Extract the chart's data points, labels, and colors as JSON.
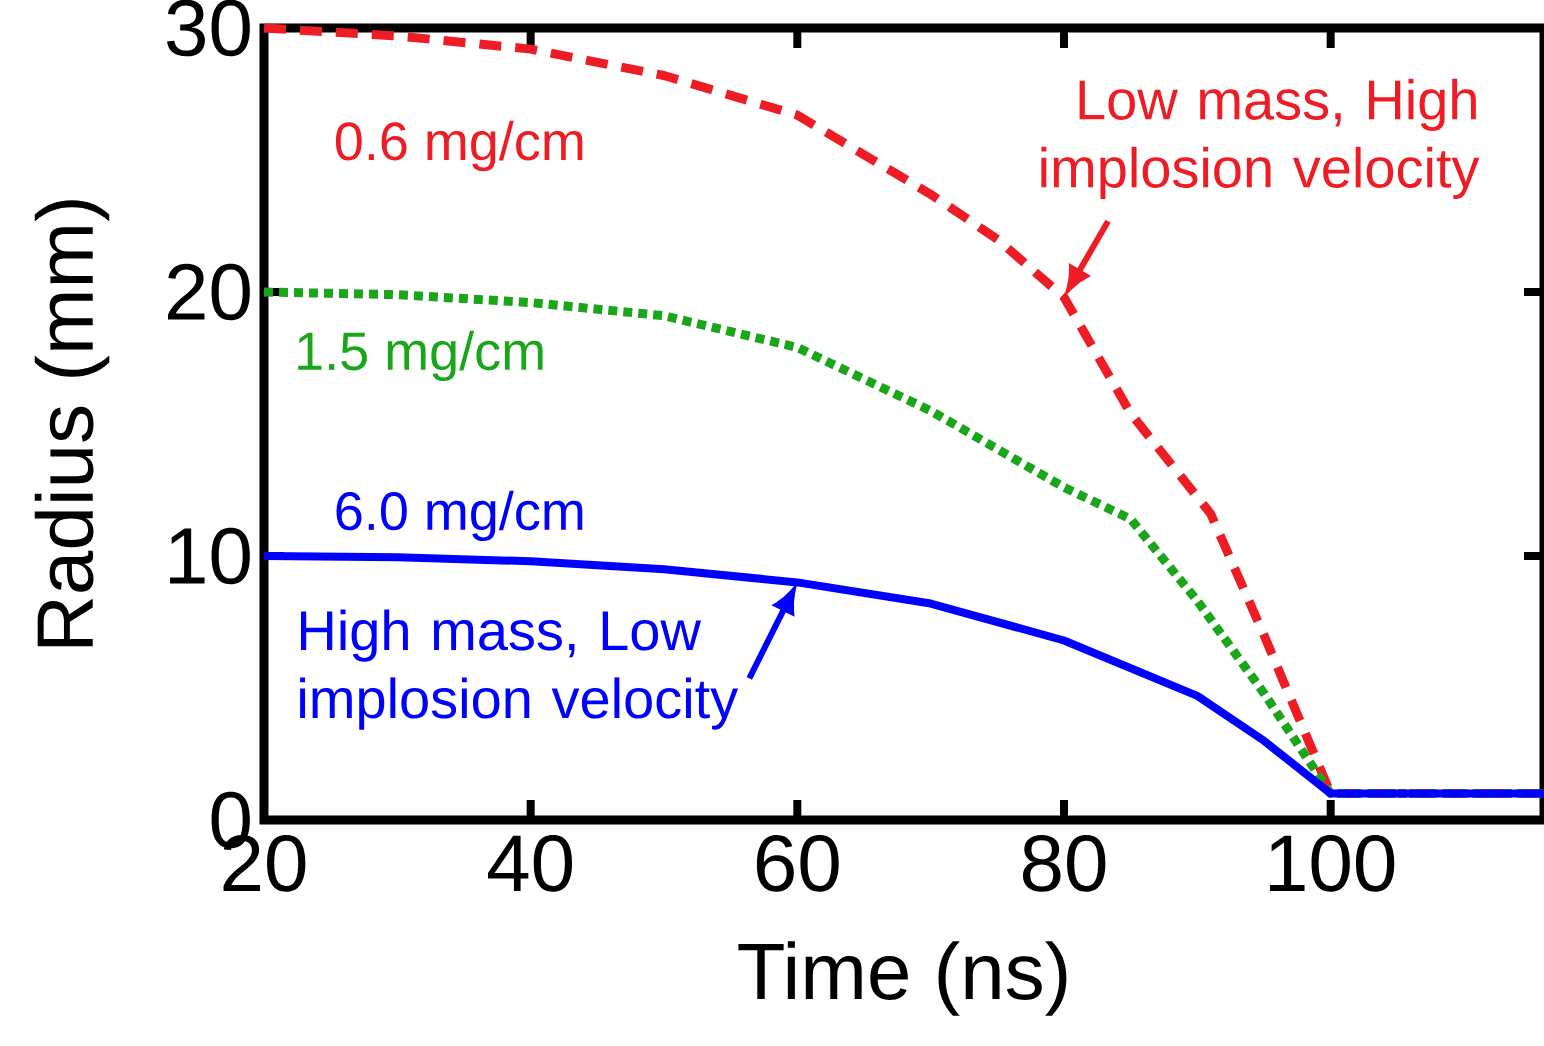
{
  "chart_data": {
    "type": "line",
    "xlabel": "Time (ns)",
    "ylabel": "Radius (mm)",
    "xlim": [
      20,
      116
    ],
    "ylim": [
      0,
      30
    ],
    "xticks": [
      20,
      40,
      60,
      80,
      100
    ],
    "yticks": [
      0,
      10,
      20,
      30
    ],
    "series": [
      {
        "name": "0.6 mg/cm",
        "color": "#ee1c24",
        "line_style": "dashed",
        "x": [
          20,
          30,
          40,
          50,
          60,
          70,
          75,
          80,
          85,
          91,
          95,
          100,
          116
        ],
        "values": [
          30,
          29.7,
          29.2,
          28.2,
          26.7,
          23.7,
          22,
          19.8,
          15.4,
          11.6,
          7,
          1,
          1
        ]
      },
      {
        "name": "1.5 mg/cm",
        "color": "#1aa51a",
        "line_style": "dotted",
        "x": [
          20,
          30,
          40,
          50,
          60,
          70,
          80,
          85,
          90,
          95,
          100,
          116
        ],
        "values": [
          20,
          19.9,
          19.6,
          19.1,
          17.9,
          15.5,
          12.6,
          11.4,
          8.3,
          4.8,
          1,
          1
        ]
      },
      {
        "name": "6.0 mg/cm",
        "color": "#0000ff",
        "line_style": "solid",
        "x": [
          20,
          30,
          40,
          50,
          60,
          70,
          80,
          90,
          95,
          100,
          116
        ],
        "values": [
          10,
          9.95,
          9.8,
          9.5,
          9.0,
          8.2,
          6.8,
          4.7,
          3.0,
          1,
          1
        ]
      }
    ],
    "annotations": [
      {
        "text": "Low mass, High implosion velocity",
        "x": 80,
        "y": 19.8
      },
      {
        "text": "High mass, Low implosion velocity",
        "x": 60,
        "y": 9.0
      }
    ]
  }
}
